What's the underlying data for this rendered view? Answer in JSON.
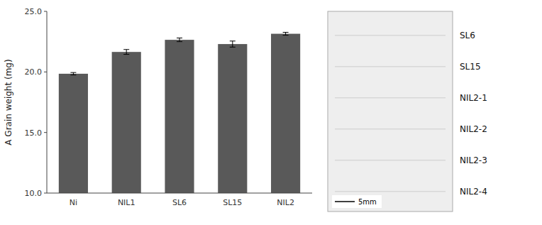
{
  "chart_data": {
    "type": "bar",
    "categories": [
      "Ni",
      "NIL1",
      "SL6",
      "SL15",
      "NIL2"
    ],
    "values": [
      19.85,
      21.65,
      22.65,
      22.3,
      23.15
    ],
    "errors": [
      0.1,
      0.2,
      0.15,
      0.25,
      0.12
    ],
    "color": "#595959",
    "ylabel": "A Grain weight (mg)",
    "ylim": [
      10.0,
      25.0
    ],
    "yticks": [
      {
        "value": 10.0,
        "label": "10.0"
      },
      {
        "value": 15.0,
        "label": "15.0"
      },
      {
        "value": 20.0,
        "label": "20.0"
      },
      {
        "value": 25.0,
        "label": "25.0"
      }
    ],
    "annotations": [
      "SL6",
      "SL15",
      "NIL2-1",
      "NIL2-2",
      "NIL2-3",
      "NIL2-4",
      "5mm"
    ]
  }
}
